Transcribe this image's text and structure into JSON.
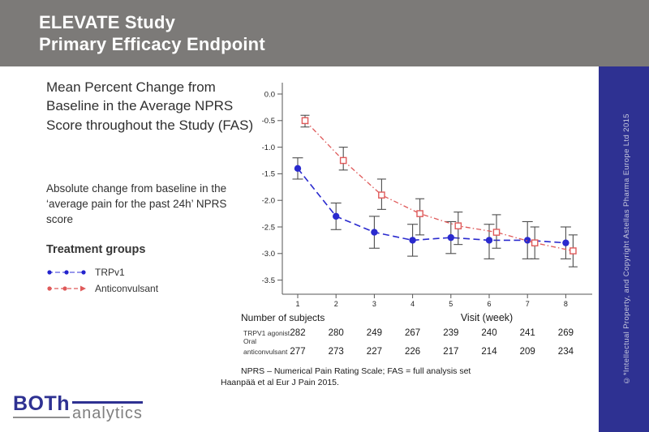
{
  "header": {
    "line1": "ELEVATE Study",
    "line2": "Primary Efficacy Endpoint"
  },
  "sidebar": {
    "copyright": "©*Intellectual Property, and Copyright Astellas Pharma Europe Ltd 2015"
  },
  "left_panel": {
    "title": "Mean Percent Change from Baseline in the Average NPRS Score throughout the Study (FAS)",
    "subtitle": "Absolute change from baseline in the ‘average pain for the past 24h’ NPRS score",
    "legend_title": "Treatment groups"
  },
  "chart_data": {
    "type": "line",
    "title": "",
    "xlabel": "Visit (week)",
    "ylabel": "",
    "x": [
      1,
      2,
      3,
      4,
      5,
      6,
      7,
      8
    ],
    "ylim": [
      -3.5,
      0.0
    ],
    "ytick_step": 0.5,
    "grid": false,
    "legend_position": "left-panel",
    "error_color": "#4d4d4d",
    "series": [
      {
        "name": "TRPv1",
        "color": "#2a2ace",
        "marker": "circle-filled",
        "line_style": "dashed",
        "values": [
          -1.4,
          -2.3,
          -2.6,
          -2.75,
          -2.7,
          -2.75,
          -2.75,
          -2.8
        ],
        "err_high": [
          -1.2,
          -2.05,
          -2.3,
          -2.45,
          -2.4,
          -2.45,
          -2.4,
          -2.5
        ],
        "err_low": [
          -1.6,
          -2.55,
          -2.9,
          -3.05,
          -3.0,
          -3.1,
          -3.1,
          -3.1
        ]
      },
      {
        "name": "Anticonvulsant",
        "color": "#df5a5a",
        "marker": "square-open",
        "line_style": "dash-dot",
        "values": [
          -0.5,
          -1.25,
          -1.9,
          -2.25,
          -2.48,
          -2.6,
          -2.8,
          -2.95
        ],
        "err_high": [
          -0.4,
          -1.0,
          -1.6,
          -1.97,
          -2.22,
          -2.27,
          -2.5,
          -2.65
        ],
        "err_low": [
          -0.62,
          -1.43,
          -2.17,
          -2.65,
          -2.83,
          -2.9,
          -3.1,
          -3.25
        ]
      }
    ]
  },
  "subjects_table": {
    "title": "Number of subjects",
    "rows": [
      {
        "label": "TRPV1 agonist",
        "label_lines": [
          "TRPV1 agonist"
        ],
        "values": [
          282,
          280,
          249,
          267,
          239,
          240,
          241,
          269
        ]
      },
      {
        "label": "Oral anticonvulsant",
        "label_lines": [
          "Oral",
          "anticonvulsant"
        ],
        "values": [
          277,
          273,
          227,
          226,
          217,
          214,
          209,
          234
        ]
      }
    ]
  },
  "footnotes": [
    "NPRS – Numerical Pain Rating Scale; FAS = full analysis set",
    "Haanpää et al Eur J Pain 2015."
  ],
  "logo": {
    "primary": "BOTh",
    "secondary": "analytics"
  },
  "colors": {
    "banner": "#7c7a78",
    "accent_blue": "#2e3192",
    "series_blue": "#2a2ace",
    "series_red": "#df5a5a",
    "error_bar": "#4d4d4d"
  }
}
